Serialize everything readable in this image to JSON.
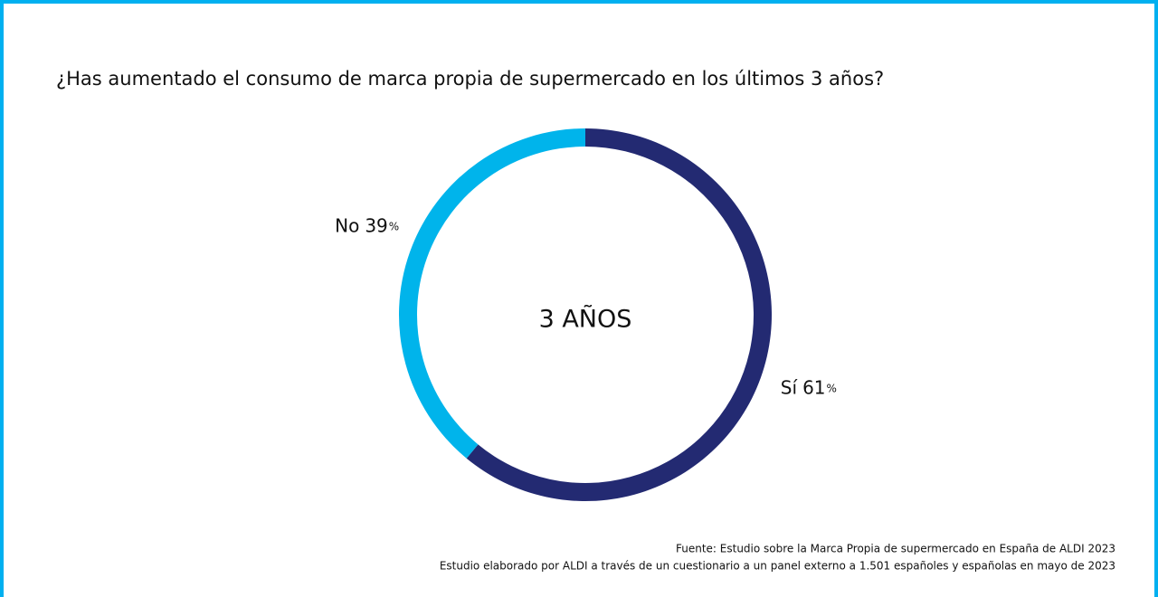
{
  "chart_data": {
    "type": "donut",
    "title": "¿Has aumentado el consumo de marca propia de supermercado en los últimos 3 años?",
    "center_label": "3 AÑOS",
    "categories": [
      "Sí",
      "No"
    ],
    "values": [
      61,
      39
    ],
    "unit": "%",
    "colors": [
      "#232a72",
      "#00b4eb"
    ],
    "notes": [
      "Fuente: Estudio sobre la Marca Propia de supermercado en España de ALDI 2023",
      "Estudio elaborado por ALDI a través de un cuestionario a un panel externo a 1.501 españoles y españolas en mayo de 2023"
    ]
  }
}
